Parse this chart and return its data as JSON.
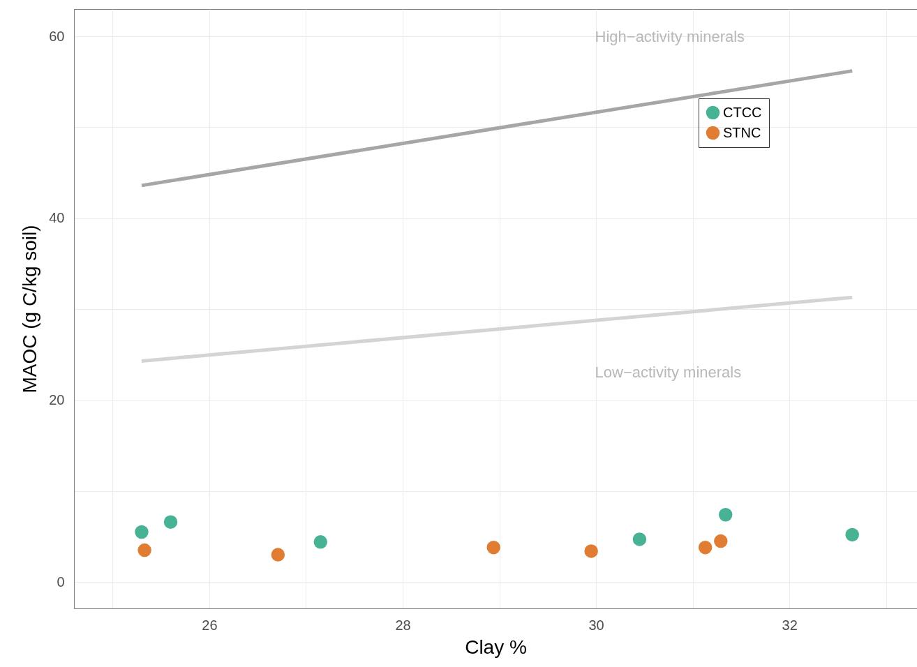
{
  "chart_data": {
    "type": "scatter",
    "xlabel": "Clay %",
    "ylabel": "MAOC (g C/kg soil)",
    "xlim": [
      24.6,
      33.32
    ],
    "ylim": [
      -2.9,
      63
    ],
    "xticks": [
      {
        "value": 25,
        "label": null
      },
      26,
      {
        "value": 27,
        "label": null
      },
      28,
      {
        "value": 29,
        "label": null
      },
      30,
      {
        "value": 31,
        "label": null
      },
      32,
      {
        "value": 33,
        "label": null
      }
    ],
    "yticks": [
      0,
      {
        "value": 10,
        "label": null
      },
      20,
      {
        "value": 30,
        "label": null
      },
      40,
      {
        "value": 50,
        "label": null
      },
      60
    ],
    "grid": true,
    "legend": "top right",
    "series": [
      {
        "name": "CTCC",
        "color": "#48b394",
        "marker": "circle",
        "x": [
          25.3,
          25.6,
          27.15,
          30.45,
          31.34,
          32.65
        ],
        "values": [
          5.5,
          6.6,
          4.4,
          4.7,
          7.4,
          5.2
        ]
      },
      {
        "name": "STNC",
        "color": "#e07d33",
        "marker": "circle",
        "x": [
          25.33,
          26.71,
          28.94,
          29.95,
          31.13,
          31.29
        ],
        "values": [
          3.5,
          3.0,
          3.8,
          3.4,
          3.8,
          4.5
        ]
      },
      {
        "type": "line",
        "color": "#a6a6a6",
        "x": [
          25.3,
          32.65
        ],
        "values": [
          43.6,
          56.2
        ]
      },
      {
        "type": "line",
        "color": "#d4d4d4",
        "x": [
          25.3,
          32.65
        ],
        "values": [
          24.3,
          31.3
        ]
      }
    ],
    "annotations": [
      "High−activity minerals",
      "Low−activity minerals"
    ]
  }
}
